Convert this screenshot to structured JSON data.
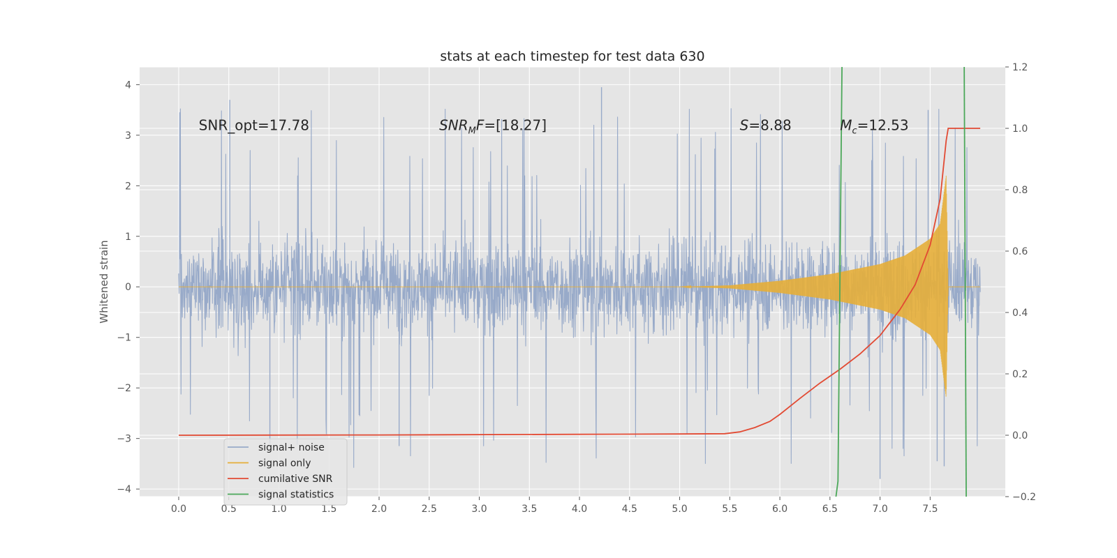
{
  "chart_data": {
    "type": "line",
    "title": "stats at each timestep for test data 630",
    "ylabel": "Whitened strain",
    "y2label": "",
    "xlabel": "",
    "xlim": [
      -0.39,
      8.25
    ],
    "ylim": [
      -4.15,
      4.35
    ],
    "y2lim": [
      -0.2,
      1.2
    ],
    "x_ticks": [
      "0.0",
      "0.5",
      "1.0",
      "1.5",
      "2.0",
      "2.5",
      "3.0",
      "3.5",
      "4.0",
      "4.5",
      "5.0",
      "5.5",
      "6.0",
      "6.5",
      "7.0",
      "7.5"
    ],
    "y_ticks": [
      "−4",
      "−3",
      "−2",
      "−1",
      "0",
      "1",
      "2",
      "3",
      "4"
    ],
    "y2_ticks": [
      "−0.2",
      "0.0",
      "0.2",
      "0.4",
      "0.6",
      "0.8",
      "1.0",
      "1.2"
    ],
    "grid": true,
    "legend_position": "lower-left",
    "annotations": [
      {
        "text": "SNR_opt=17.78",
        "x": 0.2,
        "y": 3.2
      },
      {
        "text": "SNR_MF=[18.27]",
        "display_main": "SNR",
        "display_sub": "M",
        "display_rest": "F=[18.27]",
        "x": 2.6,
        "y": 3.2
      },
      {
        "text": "S=8.88",
        "display_main": "S",
        "display_rest": "=8.88",
        "x": 5.6,
        "y": 3.2
      },
      {
        "text": "M_c=12.53",
        "display_main": "M",
        "display_sub": "c",
        "display_rest": "=12.53",
        "x": 6.6,
        "y": 3.2
      }
    ],
    "colors": {
      "noise": "#98aac9",
      "signal": "#e5ae38",
      "snr": "#e24a33",
      "stats": "#348abd",
      "stats_line": "#4ca85a",
      "background": "#e5e5e5",
      "grid": "#ffffff"
    },
    "series": [
      {
        "name": "signal+ noise",
        "axis": "left",
        "description_values": "noise envelope approx ±1.3 typical, spikes up to 3.9 and down to -3.8 over x 0.0–8.0",
        "x_range": [
          0.0,
          8.0
        ],
        "typical_envelope": [
          -1.4,
          1.4
        ],
        "max": 3.95,
        "min": -3.8
      },
      {
        "name": "signal only",
        "axis": "left",
        "x": [
          0.0,
          5.0,
          5.5,
          6.0,
          6.5,
          7.0,
          7.25,
          7.5,
          7.6,
          7.66,
          7.68
        ],
        "amplitude": [
          0.0,
          0.0,
          0.03,
          0.12,
          0.25,
          0.45,
          0.62,
          0.95,
          1.25,
          2.2,
          0.0
        ]
      },
      {
        "name": "cumilative SNR",
        "axis": "right",
        "x": [
          0.0,
          2.0,
          4.0,
          5.0,
          5.45,
          5.6,
          5.75,
          5.9,
          6.0,
          6.2,
          6.4,
          6.6,
          6.8,
          7.0,
          7.2,
          7.35,
          7.5,
          7.6,
          7.66,
          7.68,
          8.0
        ],
        "y": [
          0.0,
          0.001,
          0.003,
          0.004,
          0.005,
          0.011,
          0.025,
          0.045,
          0.068,
          0.12,
          0.17,
          0.215,
          0.265,
          0.325,
          0.41,
          0.49,
          0.62,
          0.77,
          0.96,
          1.0,
          1.0
        ]
      },
      {
        "name": "signal statistics",
        "axis": "right",
        "x": [
          6.56,
          6.58,
          6.62,
          6.62,
          7.84,
          7.86
        ],
        "y": [
          -0.2,
          -0.15,
          1.2,
          1.2,
          1.2,
          -0.2
        ]
      }
    ],
    "legend": [
      "signal+ noise",
      "signal only",
      "cumilative SNR",
      "signal statistics"
    ]
  }
}
